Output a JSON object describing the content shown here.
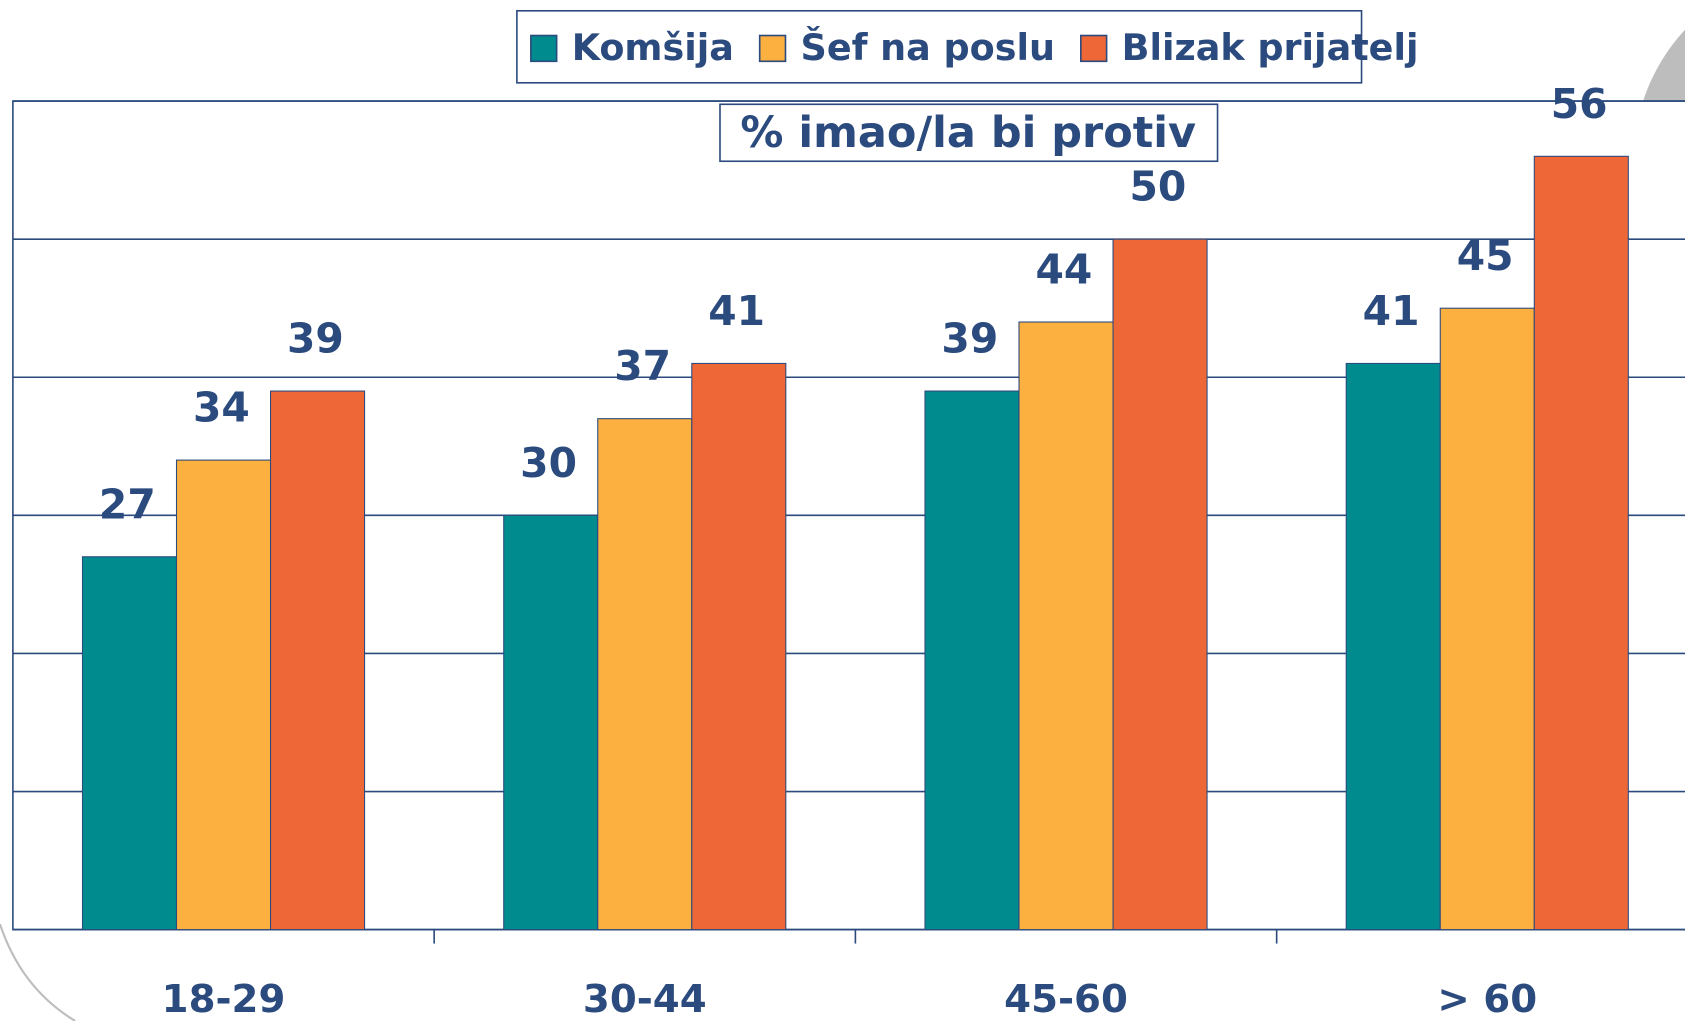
{
  "chart_data": {
    "type": "bar",
    "title": "% imao/la bi protiv",
    "categories": [
      "18-29",
      "30-44",
      "45-60",
      "> 60"
    ],
    "series": [
      {
        "name": "Komšija",
        "color": "#008B8F",
        "values": [
          27,
          30,
          39,
          41
        ]
      },
      {
        "name": "Šef na poslu",
        "color": "#FBB040",
        "values": [
          34,
          37,
          44,
          45
        ]
      },
      {
        "name": "Blizak prijatelj",
        "color": "#EE6837",
        "values": [
          39,
          41,
          50,
          56
        ]
      }
    ],
    "ylim": [
      0,
      60
    ],
    "yticks": [
      0,
      10,
      20,
      30,
      40,
      50,
      60
    ],
    "grid": true,
    "legend": "top"
  }
}
